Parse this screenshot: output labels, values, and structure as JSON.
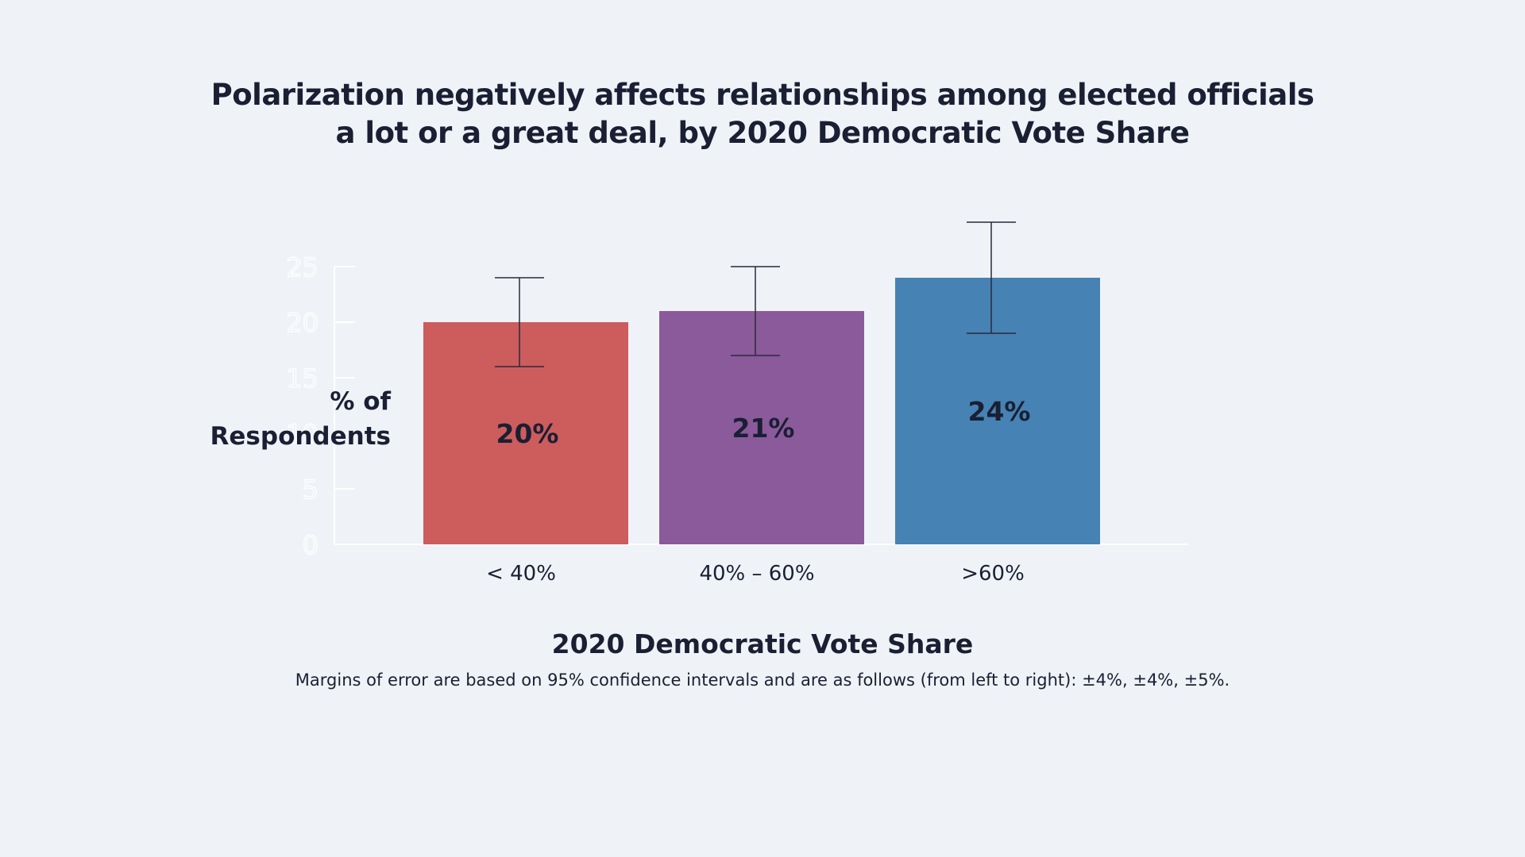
{
  "chart_data": {
    "type": "bar",
    "title": [
      "Polarization negatively affects relationships among elected officials",
      "a lot or a great deal, by 2020 Democratic Vote Share"
    ],
    "xlabel": "2020 Democratic Vote Share",
    "ylabel": [
      "% of",
      "Respondents"
    ],
    "categories": [
      "< 40%",
      "40% – 60%",
      ">60%"
    ],
    "values": [
      20,
      21,
      24
    ],
    "data_labels": [
      "20%",
      "21%",
      "24%"
    ],
    "error_margins": [
      4,
      4,
      5
    ],
    "colors": [
      "#cd5c5c",
      "#8a5a9a",
      "#4682b4"
    ],
    "ylim": [
      0,
      25
    ],
    "yticks": [
      0,
      5,
      10,
      15,
      20,
      25
    ],
    "grid": false,
    "legend": "none",
    "note": "Margins of error are based on 95% confidence intervals and are as follows (from left to right): ±4%, ±4%, ±5%."
  }
}
